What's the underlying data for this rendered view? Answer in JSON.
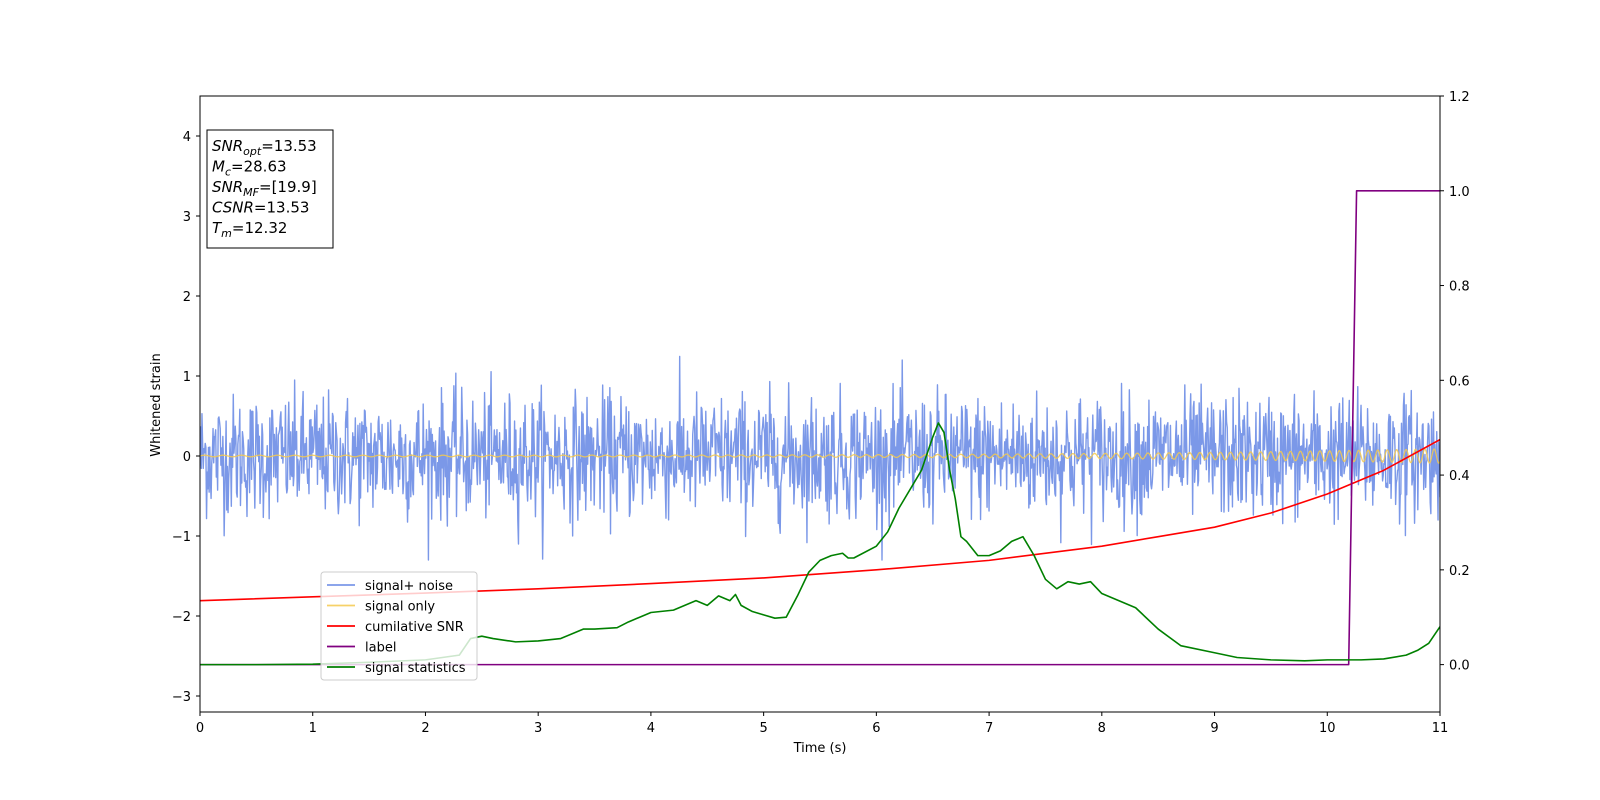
{
  "chart_data": {
    "type": "line",
    "xlabel": "Time (s)",
    "ylabel": "Whitened strain",
    "xlim": [
      0,
      11
    ],
    "ylim": [
      -3.2,
      4.5
    ],
    "y2lim": [
      -0.1,
      1.2
    ],
    "xticks": [
      0,
      1,
      2,
      3,
      4,
      5,
      6,
      7,
      8,
      9,
      10,
      11
    ],
    "yticks": [
      -3,
      -2,
      -1,
      0,
      1,
      2,
      3,
      4
    ],
    "y2ticks": [
      0.0,
      0.2,
      0.4,
      0.6,
      0.8,
      1.0,
      1.2
    ],
    "xtick_labels": [
      "0",
      "1",
      "2",
      "3",
      "4",
      "5",
      "6",
      "7",
      "8",
      "9",
      "10",
      "11"
    ],
    "ytick_labels": [
      "−3",
      "−2",
      "−1",
      "0",
      "1",
      "2",
      "3",
      "4"
    ],
    "y2tick_labels": [
      "0.0",
      "0.2",
      "0.4",
      "0.6",
      "0.8",
      "1.0",
      "1.2"
    ],
    "grid": false,
    "legend_position": "lower-left",
    "series": [
      {
        "name": "signal+ noise",
        "axis": "left",
        "color": "#7b98e8",
        "style": "noise",
        "std": 0.38,
        "range": [
          -1.3,
          1.4
        ]
      },
      {
        "name": "signal only",
        "axis": "left",
        "color": "#f5c94e",
        "style": "chirp",
        "amplitude_start": 0.01,
        "amplitude_end": 0.09
      },
      {
        "name": "cumilative SNR",
        "axis": "right",
        "color": "#ff0000",
        "x": [
          0,
          1,
          2,
          3,
          4,
          5,
          6,
          7,
          8,
          8.5,
          9,
          9.5,
          10,
          10.5,
          11
        ],
        "y": [
          0.135,
          0.143,
          0.151,
          0.16,
          0.171,
          0.183,
          0.2,
          0.22,
          0.25,
          0.27,
          0.29,
          0.32,
          0.36,
          0.41,
          0.475
        ]
      },
      {
        "name": "label",
        "axis": "right",
        "color": "#800080",
        "x": [
          0,
          10.19,
          10.26,
          11
        ],
        "y": [
          0,
          0,
          1,
          1
        ]
      },
      {
        "name": "signal statistics",
        "axis": "right",
        "color": "#008000",
        "x": [
          0,
          0.5,
          1,
          1.5,
          2,
          2.3,
          2.4,
          2.5,
          2.6,
          2.8,
          3,
          3.2,
          3.4,
          3.5,
          3.7,
          3.8,
          3.9,
          4,
          4.2,
          4.4,
          4.5,
          4.6,
          4.7,
          4.75,
          4.8,
          4.9,
          5,
          5.1,
          5.2,
          5.3,
          5.4,
          5.5,
          5.6,
          5.7,
          5.75,
          5.8,
          6,
          6.1,
          6.2,
          6.4,
          6.5,
          6.55,
          6.6,
          6.65,
          6.7,
          6.75,
          6.8,
          6.9,
          7,
          7.1,
          7.2,
          7.3,
          7.4,
          7.5,
          7.6,
          7.7,
          7.8,
          7.9,
          8,
          8.1,
          8.2,
          8.3,
          8.5,
          8.7,
          9,
          9.2,
          9.5,
          9.8,
          10,
          10.3,
          10.5,
          10.7,
          10.8,
          10.9,
          11
        ],
        "y": [
          0,
          0,
          0.001,
          0.005,
          0.01,
          0.02,
          0.055,
          0.06,
          0.055,
          0.048,
          0.05,
          0.055,
          0.075,
          0.075,
          0.078,
          0.09,
          0.1,
          0.11,
          0.115,
          0.135,
          0.125,
          0.145,
          0.135,
          0.148,
          0.125,
          0.112,
          0.105,
          0.098,
          0.1,
          0.145,
          0.195,
          0.22,
          0.23,
          0.235,
          0.225,
          0.225,
          0.25,
          0.28,
          0.33,
          0.41,
          0.48,
          0.51,
          0.49,
          0.41,
          0.35,
          0.27,
          0.26,
          0.23,
          0.23,
          0.24,
          0.26,
          0.27,
          0.23,
          0.18,
          0.16,
          0.175,
          0.17,
          0.175,
          0.15,
          0.14,
          0.13,
          0.12,
          0.075,
          0.04,
          0.025,
          0.015,
          0.01,
          0.008,
          0.01,
          0.01,
          0.012,
          0.02,
          0.03,
          0.045,
          0.08
        ]
      }
    ],
    "annotation": {
      "lines": [
        {
          "sym": "SNR",
          "sub": "opt",
          "value": "=13.53"
        },
        {
          "sym": "M",
          "sub": "c",
          "value": "=28.63"
        },
        {
          "sym": "SNR",
          "sub": "MF",
          "value": "=[19.9]"
        },
        {
          "sym": "CSNR",
          "sub": "",
          "value": "=13.53"
        },
        {
          "sym": "T",
          "sub": "m",
          "value": "=12.32"
        }
      ]
    }
  }
}
